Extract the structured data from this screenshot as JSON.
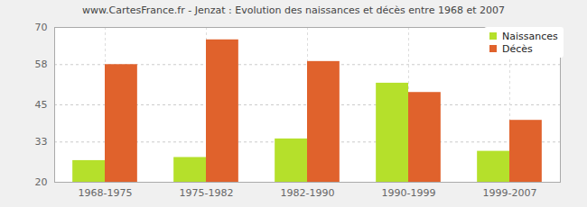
{
  "chart_data": {
    "type": "bar",
    "title": "www.CartesFrance.fr - Jenzat : Evolution des naissances et décès entre 1968 et 2007",
    "categories": [
      "1968-1975",
      "1975-1982",
      "1982-1990",
      "1990-1999",
      "1999-2007"
    ],
    "series": [
      {
        "name": "Naissances",
        "color": "#b5e02b",
        "values": [
          27,
          28,
          34,
          52,
          30
        ]
      },
      {
        "name": "Décès",
        "color": "#e0622c",
        "values": [
          58,
          66,
          59,
          49,
          40
        ]
      }
    ],
    "ylim": [
      20,
      70
    ],
    "yticks": [
      20,
      33,
      45,
      58,
      70
    ],
    "grid": true,
    "legend": "top-right"
  }
}
